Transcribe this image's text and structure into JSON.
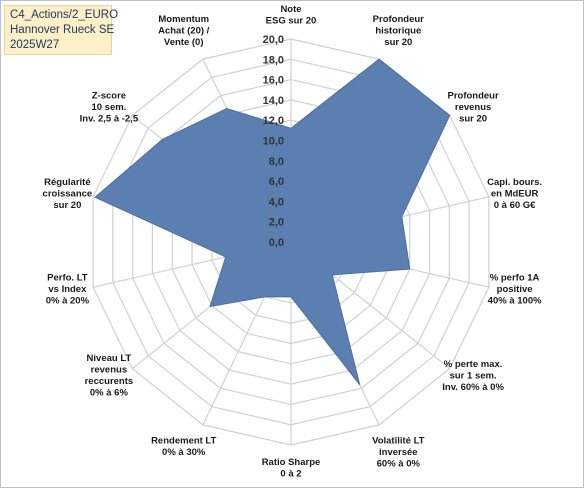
{
  "title_box": {
    "line1": "C4_Actions/2_EURO",
    "line2": "Hannover Rueck SE",
    "line3": "2025W27"
  },
  "chart_data": {
    "type": "radar",
    "rmin": 0,
    "rmax": 20,
    "tick_step": 2,
    "tick_labels": [
      "0,0",
      "2,0",
      "4,0",
      "6,0",
      "8,0",
      "10,0",
      "12,0",
      "14,0",
      "16,0",
      "18,0",
      "20,0"
    ],
    "grid": true,
    "legend": "none",
    "color": "#5a7fb0",
    "axes": [
      {
        "label": [
          "Note",
          "ESG sur 20"
        ],
        "value": 11.2
      },
      {
        "label": [
          "Profondeur",
          "historique",
          "sur 20"
        ],
        "value": 20.0
      },
      {
        "label": [
          "Profondeur",
          "revenus",
          "sur 20"
        ],
        "value": 20.0
      },
      {
        "label": [
          "Capi. bours.",
          "en MdEUR",
          "0 à 60 G€"
        ],
        "value": 11.2
      },
      {
        "label": [
          "% perfo 1A",
          "positive",
          "40% à 100%"
        ],
        "value": 12.0
      },
      {
        "label": [
          "% perte max.",
          "sur 1 sem.",
          "Inv. 60% à 0%"
        ],
        "value": 5.2
      },
      {
        "label": [
          "Volatilité LT",
          "inversée",
          "60% à 0%"
        ],
        "value": 15.6
      },
      {
        "label": [
          "Ratio Sharpe",
          "0 à 2"
        ],
        "value": 5.4
      },
      {
        "label": [
          "Rendement LT",
          "0% à 30%"
        ],
        "value": 6.0
      },
      {
        "label": [
          "Niveau LT",
          "revenus",
          "reccurents",
          "0% à 6%"
        ],
        "value": 10.2
      },
      {
        "label": [
          "Perfo. LT",
          "vs Index",
          "0% à 20%"
        ],
        "value": 6.6
      },
      {
        "label": [
          "Régularité",
          "croissance",
          "sur 20"
        ],
        "value": 19.8
      },
      {
        "label": [
          "Z-score",
          "10 sem.",
          "Inv. 2,5 à -2,5"
        ],
        "value": 16.2
      },
      {
        "label": [
          "Momentum",
          "Achat (20) /",
          "Vente (0)"
        ],
        "value": 14.6
      }
    ]
  }
}
